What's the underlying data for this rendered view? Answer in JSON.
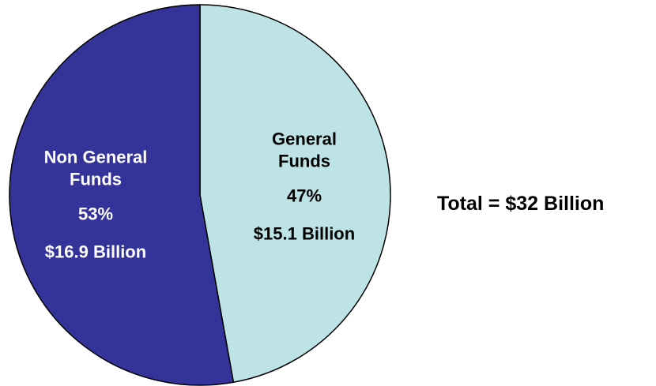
{
  "chart_data": {
    "type": "pie",
    "slices": [
      {
        "label_lines": [
          "General",
          "Funds"
        ],
        "percent_label": "47%",
        "amount_label": "$15.1 Billion",
        "value": 15.1,
        "percent": 47,
        "color": "#BDE3E6",
        "text_color": "#000000"
      },
      {
        "label_lines": [
          "Non General",
          "Funds"
        ],
        "percent_label": "53%",
        "amount_label": "$16.9 Billion",
        "value": 16.9,
        "percent": 53,
        "color": "#333399",
        "text_color": "#FFFFFF"
      }
    ],
    "annotation": "Total = $32 Billion",
    "legend": "none"
  }
}
